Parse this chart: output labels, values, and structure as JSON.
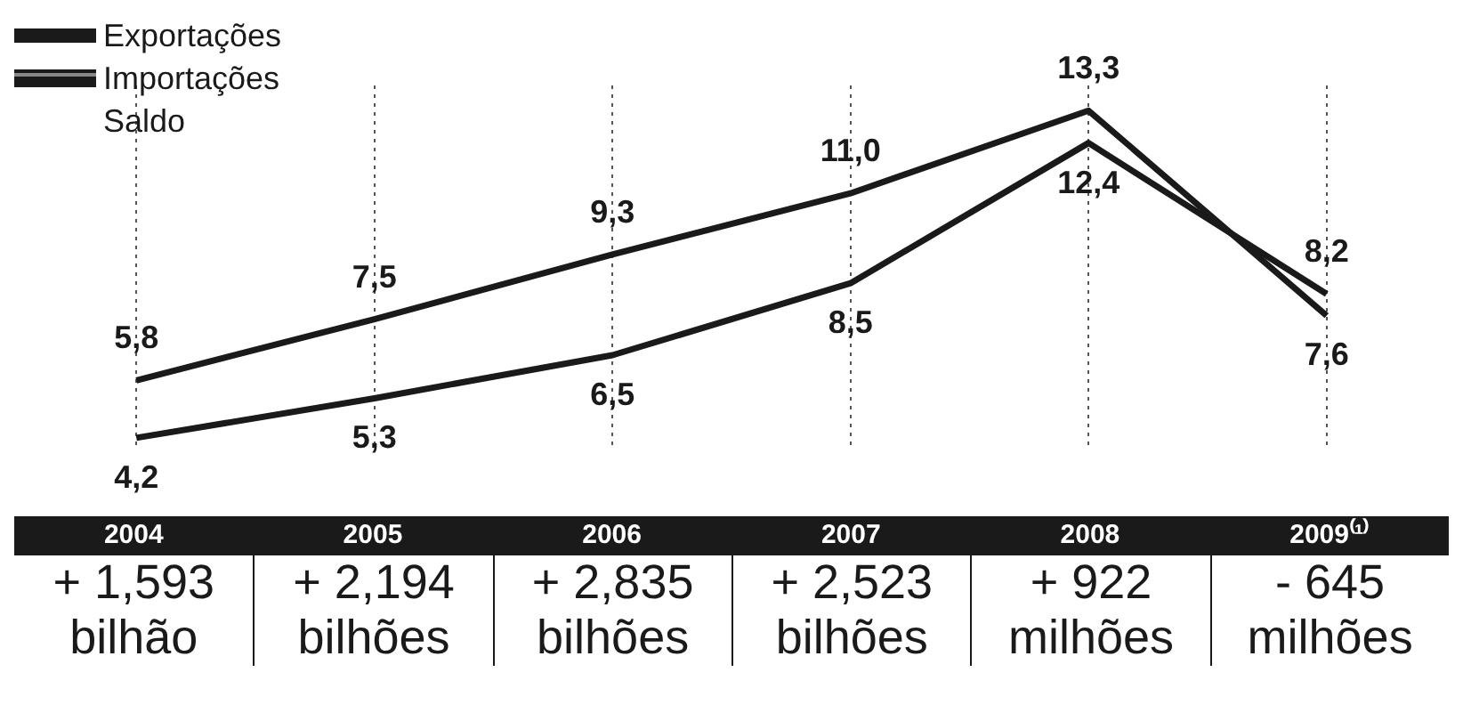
{
  "chart_data": {
    "type": "line",
    "categories": [
      "2004",
      "2005",
      "2006",
      "2007",
      "2008",
      "2009⁽¹⁾"
    ],
    "series": [
      {
        "name": "Exportações",
        "color": "#1a1a1a",
        "values": [
          5.8,
          7.5,
          9.3,
          11.0,
          13.3,
          7.6
        ],
        "value_labels": [
          "5,8",
          "7,5",
          "9,3",
          "11,0",
          "13,3",
          "7,6"
        ]
      },
      {
        "name": "Importações",
        "color": "#1a1a1a",
        "values": [
          4.2,
          5.3,
          6.5,
          8.5,
          12.4,
          8.2
        ],
        "value_labels": [
          "4,2",
          "5,3",
          "6,5",
          "8,5",
          "12,4",
          "8,2"
        ]
      }
    ],
    "grid": "x",
    "legend": "top left",
    "tick_labels": "x",
    "marker": "none",
    "line_style": "solid",
    "annotations": [
      "Saldo",
      "+ 1,593\nbilhão",
      "+ 2,194\nbilhões",
      "+ 2,835\nbilhões",
      "+ 2,523\nbilhões",
      "+ 922\nmilhões",
      "- 645\nmilhões"
    ]
  }
}
